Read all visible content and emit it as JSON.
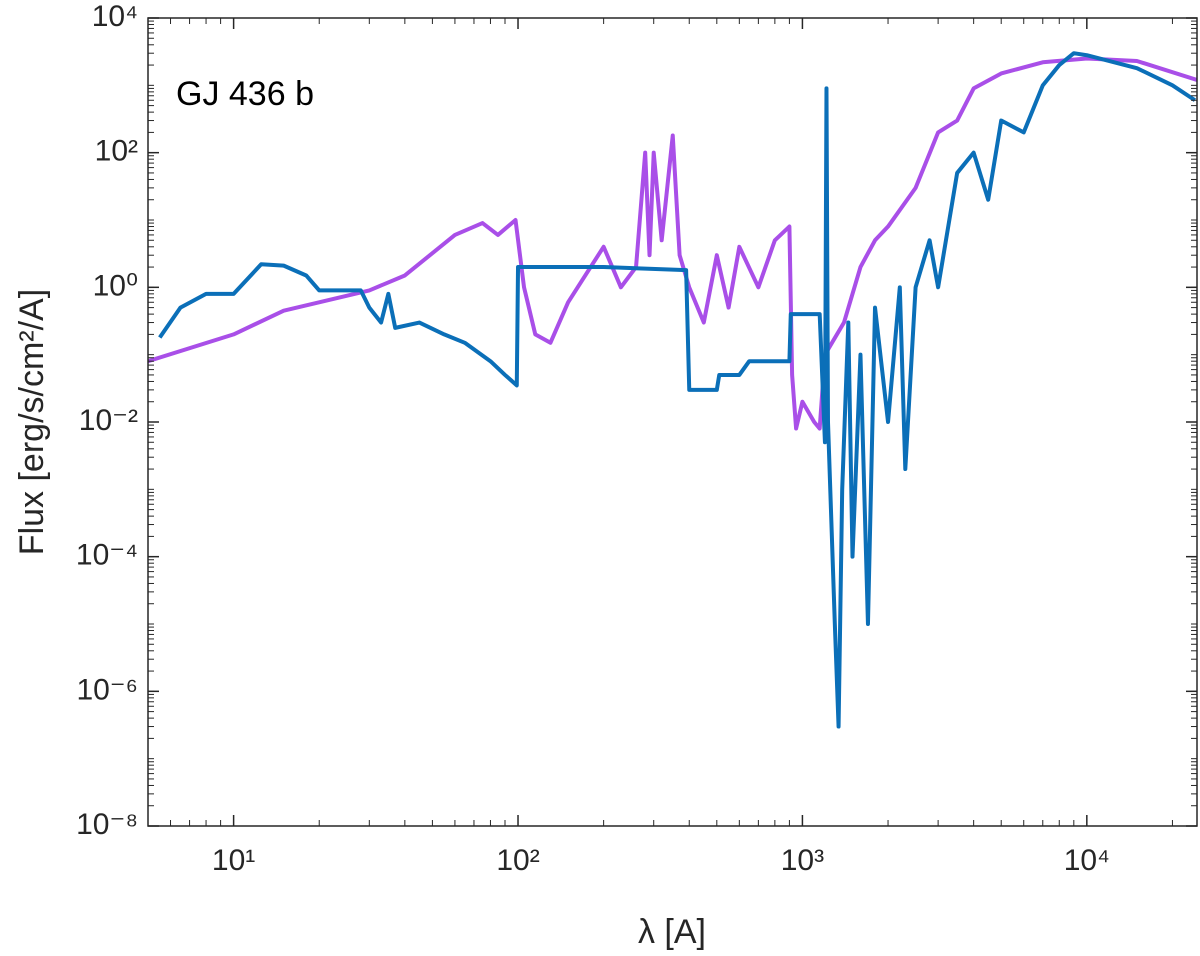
{
  "chart_data": {
    "type": "line",
    "annotation": "GJ 436 b",
    "xlabel": "λ [A]",
    "ylabel": "Flux [erg/s/cm²/A]",
    "xscale": "log",
    "yscale": "log",
    "xlim": [
      5,
      24400
    ],
    "ylim": [
      1e-08,
      10000
    ],
    "xticks": [
      {
        "value": 10,
        "label": "10¹"
      },
      {
        "value": 100,
        "label": "10²"
      },
      {
        "value": 1000,
        "label": "10³"
      },
      {
        "value": 10000,
        "label": "10⁴"
      }
    ],
    "yticks": [
      {
        "value": 1e-08,
        "label": "10⁻⁸"
      },
      {
        "value": 1e-06,
        "label": "10⁻⁶"
      },
      {
        "value": 0.0001,
        "label": "10⁻⁴"
      },
      {
        "value": 0.01,
        "label": "10⁻²"
      },
      {
        "value": 1,
        "label": "10⁰"
      },
      {
        "value": 100,
        "label": "10²"
      },
      {
        "value": 10000,
        "label": "10⁴"
      }
    ],
    "series": [
      {
        "color": "#a94fe8",
        "x": [
          5,
          10,
          15,
          30,
          40,
          60,
          75,
          85,
          98,
          105,
          115,
          130,
          150,
          180,
          200,
          230,
          260,
          280,
          290,
          300,
          320,
          350,
          370,
          400,
          450,
          500,
          550,
          600,
          700,
          800,
          900,
          920,
          950,
          1000,
          1100,
          1150,
          1200,
          1400,
          1600,
          1800,
          2000,
          2500,
          3000,
          3500,
          4000,
          5000,
          7000,
          10000,
          15000,
          24400
        ],
        "values": [
          0.08,
          0.2,
          0.45,
          0.9,
          1.5,
          6,
          9,
          6,
          10,
          1,
          0.2,
          0.15,
          0.6,
          2,
          4,
          1,
          2,
          100,
          3,
          100,
          5,
          180,
          3,
          1,
          0.3,
          3,
          0.5,
          4,
          1,
          5,
          8,
          0.05,
          0.008,
          0.02,
          0.01,
          0.008,
          0.1,
          0.3,
          2,
          5,
          8,
          30,
          200,
          300,
          900,
          1500,
          2200,
          2500,
          2300,
          1200
        ]
      },
      {
        "color": "#0b6fb8",
        "x": [
          5.5,
          6.5,
          8,
          10,
          12.5,
          15,
          18,
          20,
          28,
          30,
          33,
          35,
          37,
          45,
          55,
          65,
          80,
          90,
          99,
          100,
          200,
          390,
          400,
          500,
          510,
          600,
          650,
          900,
          910,
          1150,
          1200,
          1215,
          1230,
          1300,
          1340,
          1380,
          1450,
          1500,
          1600,
          1700,
          1800,
          2000,
          2200,
          2300,
          2500,
          2800,
          3000,
          3500,
          4000,
          4500,
          5000,
          6000,
          7000,
          8000,
          9000,
          10000,
          15000,
          20000,
          24000
        ],
        "values": [
          0.18,
          0.5,
          0.8,
          0.8,
          2.2,
          2.1,
          1.5,
          0.9,
          0.9,
          0.5,
          0.3,
          0.8,
          0.25,
          0.3,
          0.2,
          0.15,
          0.08,
          0.05,
          0.035,
          2,
          2,
          1.8,
          0.03,
          0.03,
          0.05,
          0.05,
          0.08,
          0.08,
          0.4,
          0.4,
          0.005,
          900,
          0.01,
          1e-05,
          3e-07,
          0.001,
          0.3,
          0.0001,
          0.1,
          1e-05,
          0.5,
          0.01,
          1,
          0.002,
          1,
          5,
          1,
          50,
          100,
          20,
          300,
          200,
          1000,
          2000,
          3000,
          2800,
          1800,
          1000,
          600
        ]
      }
    ]
  }
}
